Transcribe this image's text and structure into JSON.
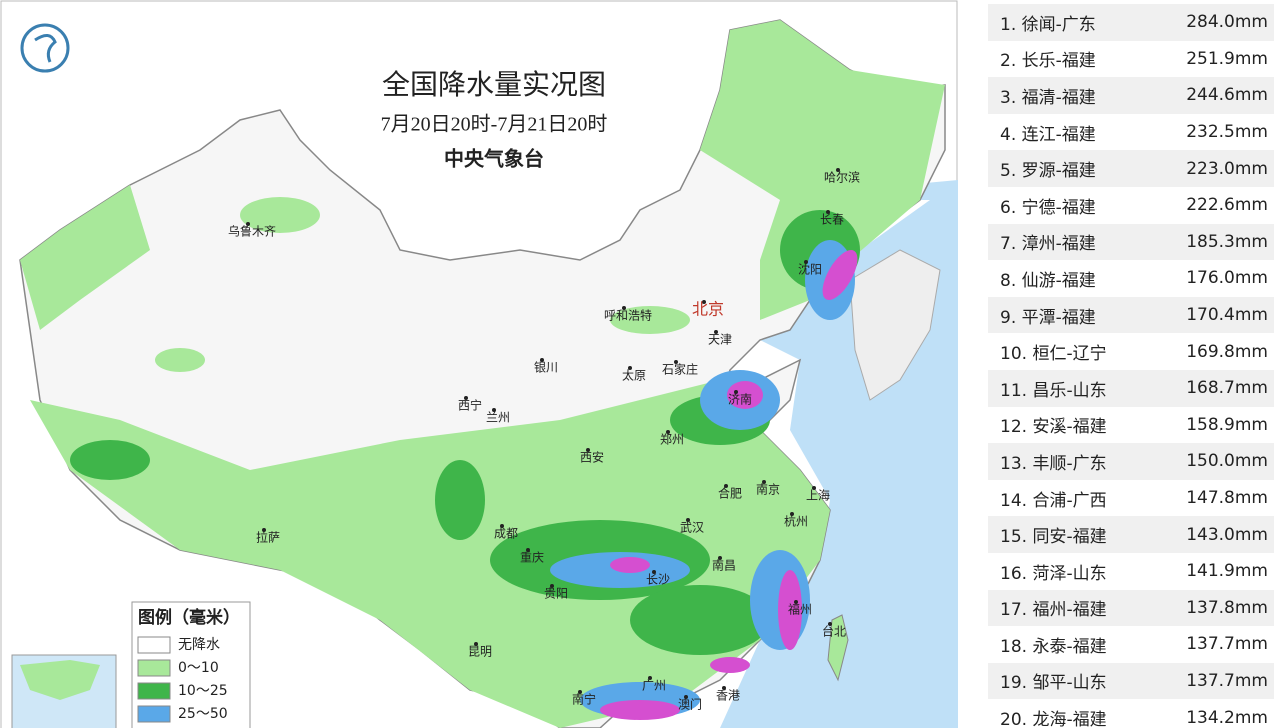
{
  "map": {
    "title": "全国降水量实况图",
    "subtitle": "7月20日20时-7月21日20时",
    "source": "中央气象台",
    "cities": [
      "乌鲁木齐",
      "哈尔滨",
      "长春",
      "沈阳",
      "北京",
      "天津",
      "呼和浩特",
      "石家庄",
      "太原",
      "银川",
      "西宁",
      "兰州",
      "济南",
      "郑州",
      "西安",
      "合肥",
      "南京",
      "上海",
      "成都",
      "重庆",
      "武汉",
      "杭州",
      "拉萨",
      "长沙",
      "南昌",
      "贵阳",
      "福州",
      "昆明",
      "台北",
      "南宁",
      "广州",
      "澳门",
      "香港"
    ],
    "legend": {
      "title": "图例（毫米）",
      "items": [
        "无降水",
        "0～10",
        "10～25",
        "25～50"
      ]
    }
  },
  "ranking": {
    "rows": [
      {
        "name": "1. 徐闻-广东",
        "value": "284.0mm"
      },
      {
        "name": "2. 长乐-福建",
        "value": "251.9mm"
      },
      {
        "name": "3. 福清-福建",
        "value": "244.6mm"
      },
      {
        "name": "4. 连江-福建",
        "value": "232.5mm"
      },
      {
        "name": "5. 罗源-福建",
        "value": "223.0mm"
      },
      {
        "name": "6. 宁德-福建",
        "value": "222.6mm"
      },
      {
        "name": "7. 漳州-福建",
        "value": "185.3mm"
      },
      {
        "name": "8. 仙游-福建",
        "value": "176.0mm"
      },
      {
        "name": "9. 平潭-福建",
        "value": "170.4mm"
      },
      {
        "name": "10. 桓仁-辽宁",
        "value": "169.8mm"
      },
      {
        "name": "11. 昌乐-山东",
        "value": "168.7mm"
      },
      {
        "name": "12. 安溪-福建",
        "value": "158.9mm"
      },
      {
        "name": "13. 丰顺-广东",
        "value": "150.0mm"
      },
      {
        "name": "14. 合浦-广西",
        "value": "147.8mm"
      },
      {
        "name": "15. 同安-福建",
        "value": "143.0mm"
      },
      {
        "name": "16. 菏泽-山东",
        "value": "141.9mm"
      },
      {
        "name": "17. 福州-福建",
        "value": "137.8mm"
      },
      {
        "name": "18. 永泰-福建",
        "value": "137.7mm"
      },
      {
        "name": "19. 邹平-山东",
        "value": "137.7mm"
      },
      {
        "name": "20. 龙海-福建",
        "value": "134.2mm"
      }
    ]
  }
}
